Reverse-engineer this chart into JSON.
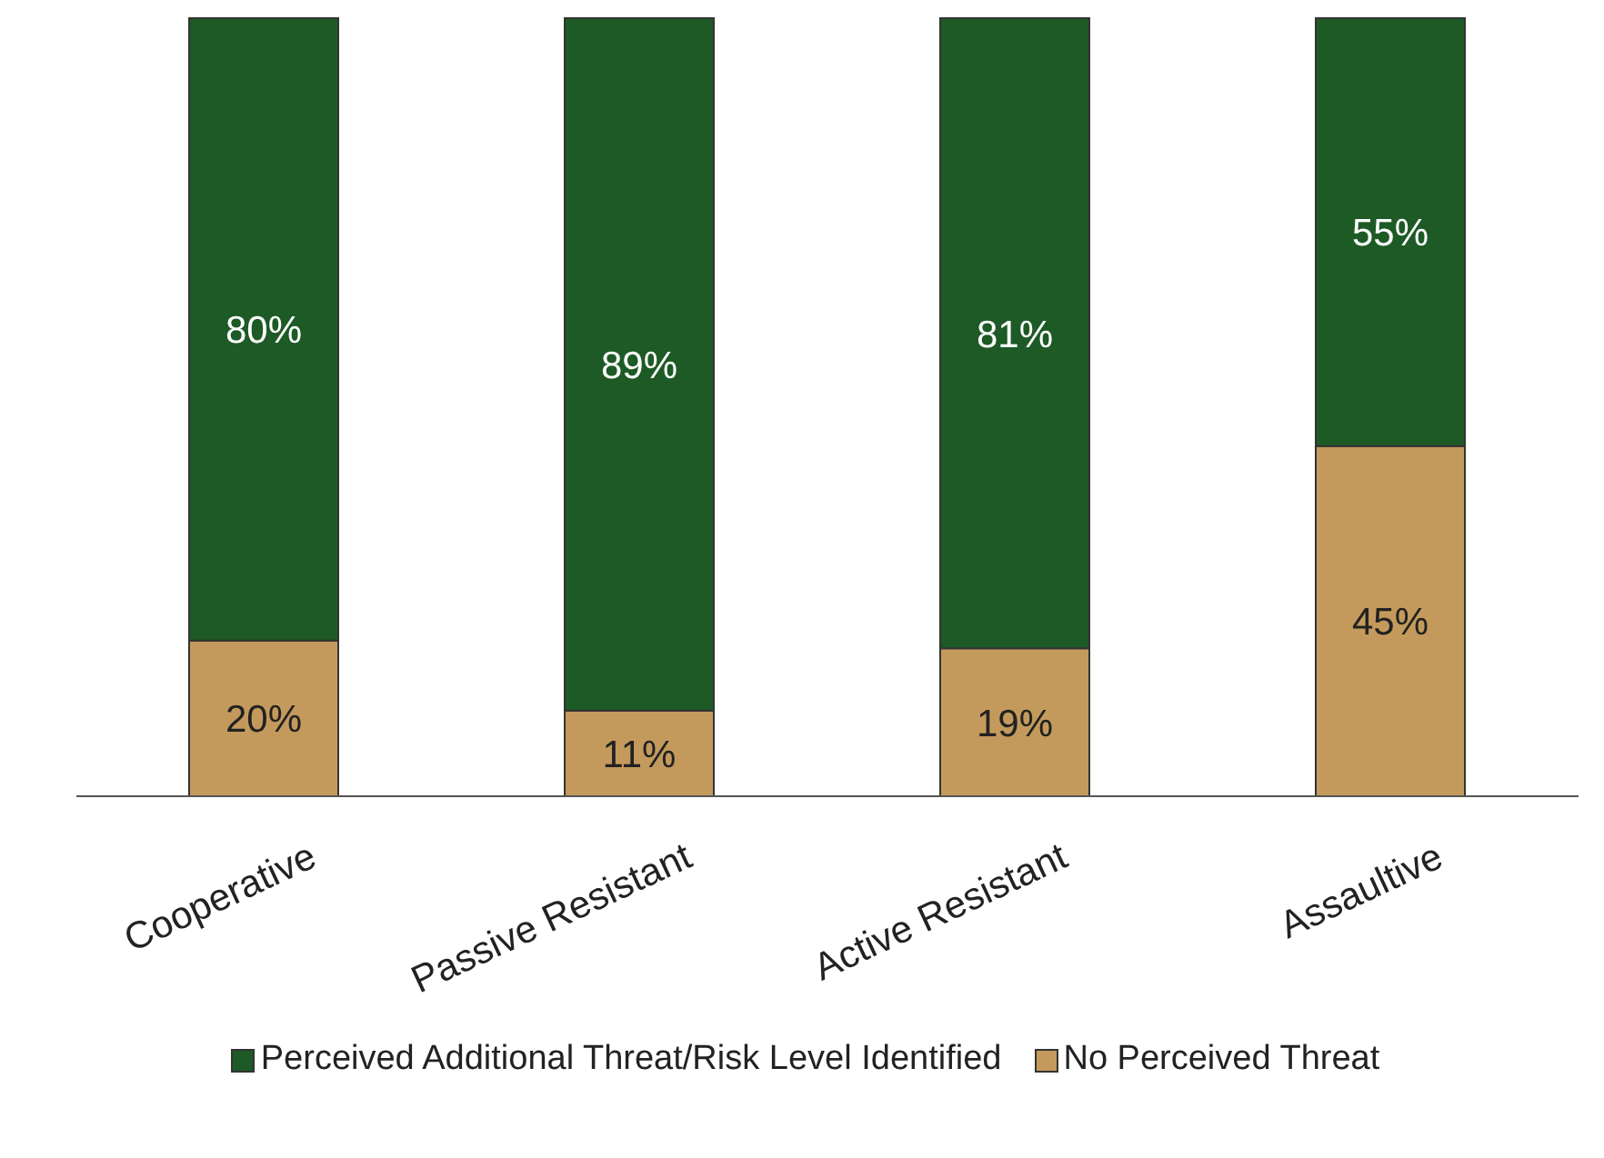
{
  "chart_data": {
    "type": "bar",
    "stacked": true,
    "categories": [
      "Cooperative",
      "Passive Resistant",
      "Active Resistant",
      "Assaultive"
    ],
    "series": [
      {
        "name": "No Perceived Threat",
        "color": "#c49a5c",
        "values": [
          20,
          11,
          19,
          45
        ],
        "value_labels": [
          "20%",
          "11%",
          "19%",
          "45%"
        ]
      },
      {
        "name": "Perceived Additional Threat/Risk Level Identified",
        "color": "#1d5a26",
        "values": [
          80,
          89,
          81,
          55
        ],
        "value_labels": [
          "80%",
          "89%",
          "81%",
          "55%"
        ]
      }
    ],
    "legend": "bottom",
    "grid": false
  }
}
